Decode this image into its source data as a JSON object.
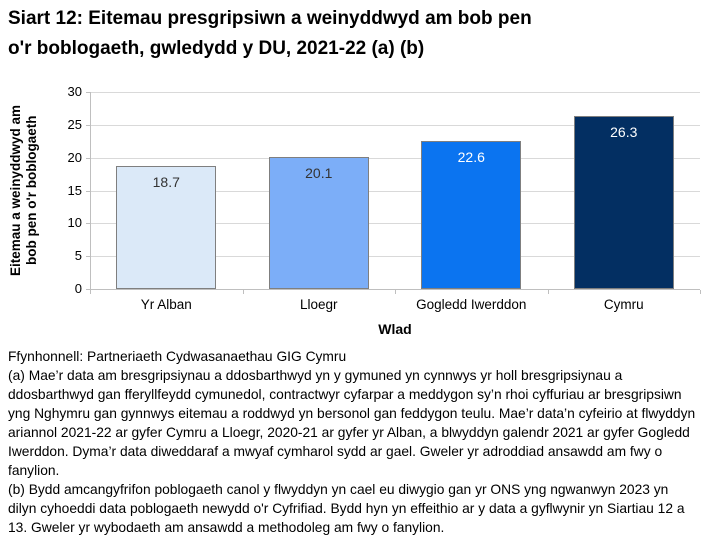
{
  "page": {
    "background": "#ffffff"
  },
  "title_lines": [
    "Siart 12: Eitemau presgripsiwn a weinyddwyd am bob pen",
    "o'r boblogaeth, gwledydd y DU, 2021-22 (a) (b)"
  ],
  "chart_data": {
    "type": "bar",
    "title": "Siart 12: Eitemau presgripsiwn a weinyddwyd am bob pen o'r boblogaeth, gwledydd y DU, 2021-22 (a) (b)",
    "categories": [
      "Yr Alban",
      "Lloegr",
      "Gogledd Iwerddon",
      "Cymru"
    ],
    "values": [
      18.7,
      20.1,
      22.6,
      26.3
    ],
    "data_labels": [
      "18.7",
      "20.1",
      "22.6",
      "26.3"
    ],
    "bar_colors": [
      "#dbe9f8",
      "#7caef8",
      "#0b74f0",
      "#032f62"
    ],
    "data_label_colors": [
      "#333333",
      "#333333",
      "#ffffff",
      "#ffffff"
    ],
    "xlabel": "Wlad",
    "ylabel": "Eitemau a weinyddwyd am bob pen o'r boblogaeth",
    "ylabel_lines": [
      "Eitemau a weinyddwyd am",
      "bob pen o'r boblogaeth"
    ],
    "ylim": [
      0,
      30
    ],
    "yticks": [
      0,
      5,
      10,
      15,
      20,
      25,
      30
    ],
    "grid": true,
    "legend": false,
    "colors": {
      "gridline": "#d9d9d9",
      "axis": "#bfbfbf",
      "bar_border": "#7f7f7f"
    }
  },
  "footer": {
    "source": "Ffynhonnell: Partneriaeth Cydwasanaethau GIG Cymru",
    "note_a": "(a) Mae’r data am bresgripsiynau a ddosbarthwyd yn y gymuned yn cynnwys yr holl bresgripsiynau a ddosbarthwyd gan fferyllfeydd cymunedol, contractwyr cyfarpar a meddygon sy’n rhoi cyffuriau ar bresgripsiwn yng Nghymru gan gynnwys eitemau a roddwyd yn bersonol gan feddygon teulu. Mae’r data’n cyfeirio at flwyddyn ariannol 2021-22 ar gyfer Cymru a Lloegr, 2020-21 ar gyfer yr Alban, a blwyddyn galendr 2021 ar gyfer Gogledd Iwerddon. Dyma’r data diweddaraf a mwyaf cymharol sydd ar gael. Gweler yr adroddiad ansawdd am fwy o fanylion.",
    "note_b": "(b) Bydd amcangyfrifon poblogaeth canol y flwyddyn yn cael eu diwygio gan yr ONS yng ngwanwyn 2023 yn dilyn cyhoeddi data poblogaeth newydd o'r Cyfrifiad. Bydd hyn yn effeithio ar y data a gyflwynir yn Siartiau 12 a 13. Gweler yr wybodaeth am ansawdd a methodoleg am fwy o fanylion."
  }
}
